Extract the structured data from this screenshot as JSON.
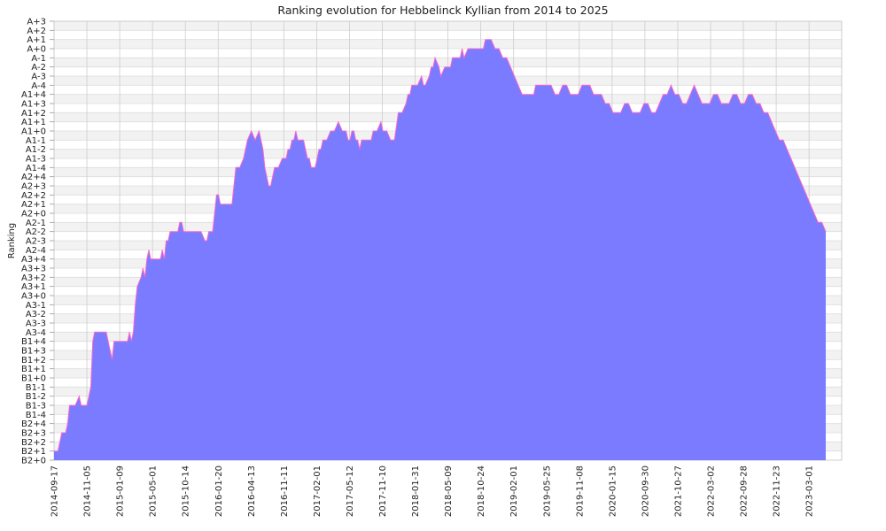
{
  "chart_data": {
    "type": "area",
    "title": "Ranking evolution for Hebbelinck Kyllian from 2014 to 2025",
    "xlabel": "",
    "ylabel": "Ranking",
    "grid": true,
    "y_categories": [
      "B2+0",
      "B2+1",
      "B2+2",
      "B2+3",
      "B2+4",
      "B1-4",
      "B1-3",
      "B1-2",
      "B1-1",
      "B1+0",
      "B1+1",
      "B1+2",
      "B1+3",
      "B1+4",
      "A3-4",
      "A3-3",
      "A3-2",
      "A3-1",
      "A3+0",
      "A3+1",
      "A3+2",
      "A3+3",
      "A3+4",
      "A2-4",
      "A2-3",
      "A2-2",
      "A2-1",
      "A2+0",
      "A2+1",
      "A2+2",
      "A2+3",
      "A2+4",
      "A1-4",
      "A1-3",
      "A1-2",
      "A1-1",
      "A1+0",
      "A1+1",
      "A1+2",
      "A1+3",
      "A1+4",
      "A-4",
      "A-3",
      "A-2",
      "A-1",
      "A+0",
      "A+1",
      "A+2",
      "A+3"
    ],
    "x_tick_labels": [
      "2014-09-17",
      "2014-11-05",
      "2015-01-09",
      "2015-05-01",
      "2015-10-14",
      "2016-01-20",
      "2016-04-13",
      "2016-11-11",
      "2017-02-01",
      "2017-05-12",
      "2017-11-10",
      "2018-01-31",
      "2018-05-09",
      "2018-10-24",
      "2019-02-01",
      "2019-05-25",
      "2019-11-08",
      "2020-01-15",
      "2020-09-30",
      "2021-10-27",
      "2022-03-02",
      "2022-09-28",
      "2022-11-23",
      "2023-03-01"
    ],
    "x_count": 400,
    "series": [
      {
        "color": "#7b7bff",
        "line_color": "#ff66cc",
        "points": [
          [
            0,
            1
          ],
          [
            2,
            1
          ],
          [
            4,
            3
          ],
          [
            6,
            3
          ],
          [
            7,
            4
          ],
          [
            8,
            6
          ],
          [
            11,
            6
          ],
          [
            13,
            7
          ],
          [
            14,
            6
          ],
          [
            17,
            6
          ],
          [
            19,
            8
          ],
          [
            20,
            13
          ],
          [
            21,
            14
          ],
          [
            27,
            14
          ],
          [
            28,
            13
          ],
          [
            29,
            12
          ],
          [
            30,
            11
          ],
          [
            31,
            13
          ],
          [
            38,
            13
          ],
          [
            39,
            14
          ],
          [
            40,
            13
          ],
          [
            41,
            14
          ],
          [
            42,
            17
          ],
          [
            43,
            19
          ],
          [
            45,
            20
          ],
          [
            46,
            21
          ],
          [
            47,
            20
          ],
          [
            48,
            22
          ],
          [
            49,
            23
          ],
          [
            50,
            22
          ],
          [
            55,
            22
          ],
          [
            56,
            23
          ],
          [
            57,
            22
          ],
          [
            58,
            24
          ],
          [
            59,
            24
          ],
          [
            60,
            25
          ],
          [
            64,
            25
          ],
          [
            65,
            26
          ],
          [
            66,
            26
          ],
          [
            67,
            25
          ],
          [
            68,
            25
          ],
          [
            70,
            25
          ],
          [
            75,
            25
          ],
          [
            76,
            25
          ],
          [
            78,
            24
          ],
          [
            79,
            24
          ],
          [
            80,
            25
          ],
          [
            82,
            25
          ],
          [
            83,
            27
          ],
          [
            84,
            29
          ],
          [
            85,
            29
          ],
          [
            86,
            28
          ],
          [
            88,
            28
          ],
          [
            91,
            28
          ],
          [
            92,
            28
          ],
          [
            93,
            30
          ],
          [
            94,
            32
          ],
          [
            96,
            32
          ],
          [
            98,
            33
          ],
          [
            100,
            35
          ],
          [
            102,
            36
          ],
          [
            104,
            35
          ],
          [
            106,
            36
          ],
          [
            108,
            34
          ],
          [
            109,
            32
          ],
          [
            110,
            31
          ],
          [
            111,
            30
          ],
          [
            112,
            30
          ],
          [
            114,
            32
          ],
          [
            116,
            32
          ],
          [
            118,
            33
          ],
          [
            120,
            33
          ],
          [
            121,
            34
          ],
          [
            122,
            34
          ],
          [
            123,
            35
          ],
          [
            124,
            35
          ],
          [
            125,
            36
          ],
          [
            126,
            35
          ],
          [
            128,
            35
          ],
          [
            129,
            35
          ],
          [
            130,
            34
          ],
          [
            131,
            33
          ],
          [
            132,
            33
          ],
          [
            133,
            32
          ],
          [
            135,
            32
          ],
          [
            136,
            33
          ],
          [
            137,
            34
          ],
          [
            138,
            34
          ],
          [
            139,
            35
          ],
          [
            141,
            35
          ],
          [
            143,
            36
          ],
          [
            145,
            36
          ],
          [
            147,
            37
          ],
          [
            149,
            36
          ],
          [
            151,
            36
          ],
          [
            152,
            35
          ],
          [
            153,
            35
          ],
          [
            154,
            36
          ],
          [
            155,
            36
          ],
          [
            156,
            35
          ],
          [
            157,
            35
          ],
          [
            158,
            34
          ],
          [
            159,
            35
          ],
          [
            160,
            35
          ],
          [
            162,
            35
          ],
          [
            164,
            35
          ],
          [
            165,
            36
          ],
          [
            167,
            36
          ],
          [
            169,
            37
          ],
          [
            170,
            36
          ],
          [
            172,
            36
          ],
          [
            174,
            35
          ],
          [
            176,
            35
          ],
          [
            178,
            38
          ],
          [
            180,
            38
          ],
          [
            182,
            39
          ],
          [
            183,
            40
          ],
          [
            184,
            40
          ],
          [
            185,
            41
          ],
          [
            188,
            41
          ],
          [
            190,
            42
          ],
          [
            191,
            41
          ],
          [
            192,
            41
          ],
          [
            194,
            42
          ],
          [
            195,
            43
          ],
          [
            196,
            43
          ],
          [
            197,
            44
          ],
          [
            199,
            43
          ],
          [
            200,
            42
          ],
          [
            202,
            43
          ],
          [
            205,
            43
          ],
          [
            206,
            44
          ],
          [
            208,
            44
          ],
          [
            210,
            44
          ],
          [
            211,
            45
          ],
          [
            212,
            44
          ],
          [
            214,
            45
          ],
          [
            216,
            45
          ],
          [
            218,
            45
          ],
          [
            220,
            45
          ],
          [
            222,
            45
          ],
          [
            223,
            46
          ],
          [
            226,
            46
          ],
          [
            228,
            45
          ],
          [
            230,
            45
          ],
          [
            232,
            44
          ],
          [
            234,
            44
          ],
          [
            236,
            43
          ],
          [
            238,
            42
          ],
          [
            240,
            41
          ],
          [
            242,
            40
          ],
          [
            244,
            40
          ],
          [
            246,
            40
          ],
          [
            248,
            40
          ],
          [
            249,
            41
          ],
          [
            251,
            41
          ],
          [
            253,
            41
          ],
          [
            255,
            41
          ],
          [
            257,
            41
          ],
          [
            259,
            40
          ],
          [
            261,
            40
          ],
          [
            263,
            41
          ],
          [
            265,
            41
          ],
          [
            267,
            40
          ],
          [
            269,
            40
          ],
          [
            271,
            40
          ],
          [
            273,
            41
          ],
          [
            275,
            41
          ],
          [
            277,
            41
          ],
          [
            279,
            40
          ],
          [
            281,
            40
          ],
          [
            283,
            40
          ],
          [
            285,
            39
          ],
          [
            287,
            39
          ],
          [
            289,
            38
          ],
          [
            291,
            38
          ],
          [
            293,
            38
          ],
          [
            295,
            39
          ],
          [
            297,
            39
          ],
          [
            299,
            38
          ],
          [
            301,
            38
          ],
          [
            303,
            38
          ],
          [
            305,
            39
          ],
          [
            307,
            39
          ],
          [
            309,
            38
          ],
          [
            311,
            38
          ],
          [
            313,
            39
          ],
          [
            315,
            40
          ],
          [
            317,
            40
          ],
          [
            319,
            41
          ],
          [
            321,
            40
          ],
          [
            323,
            40
          ],
          [
            325,
            39
          ],
          [
            327,
            39
          ],
          [
            329,
            40
          ],
          [
            331,
            41
          ],
          [
            333,
            40
          ],
          [
            335,
            39
          ],
          [
            337,
            39
          ],
          [
            339,
            39
          ],
          [
            341,
            40
          ],
          [
            343,
            40
          ],
          [
            345,
            39
          ],
          [
            347,
            39
          ],
          [
            349,
            39
          ],
          [
            351,
            40
          ],
          [
            353,
            40
          ],
          [
            355,
            39
          ],
          [
            357,
            39
          ],
          [
            359,
            40
          ],
          [
            361,
            40
          ],
          [
            363,
            39
          ],
          [
            365,
            39
          ],
          [
            367,
            38
          ],
          [
            369,
            38
          ],
          [
            371,
            37
          ],
          [
            373,
            36
          ],
          [
            375,
            35
          ],
          [
            377,
            35
          ],
          [
            379,
            34
          ],
          [
            381,
            33
          ],
          [
            383,
            32
          ],
          [
            385,
            31
          ],
          [
            387,
            30
          ],
          [
            389,
            29
          ],
          [
            391,
            28
          ],
          [
            393,
            27
          ],
          [
            395,
            26
          ],
          [
            397,
            26
          ],
          [
            399,
            25
          ]
        ]
      }
    ]
  }
}
